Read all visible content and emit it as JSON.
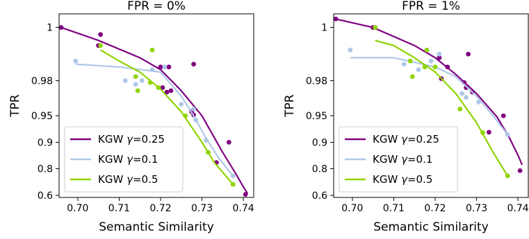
{
  "chart_data": [
    {
      "type": "scatter",
      "title": "FPR = 0%",
      "xlabel": "Semantic Similarity",
      "ylabel": "TPR",
      "xlim": [
        0.6955,
        0.7425
      ],
      "y_scale": "transformed (-log(1 - TPR))",
      "x_ticks": [
        "0.70",
        "0.71",
        "0.72",
        "0.73",
        "0.74"
      ],
      "y_ticks": [
        "0.6",
        "0.8",
        "0.9",
        "0.95",
        "0.98",
        "1"
      ],
      "legend": "lower-left",
      "series": [
        {
          "name": "KGW γ=0.25",
          "color": "#800080",
          "points": [
            [
              0.696,
              0.995
            ],
            [
              0.7055,
              0.994
            ],
            [
              0.705,
              0.992
            ],
            [
              0.72,
              0.986
            ],
            [
              0.722,
              0.986
            ],
            [
              0.7215,
              0.973
            ],
            [
              0.7205,
              0.976
            ],
            [
              0.7225,
              0.974
            ],
            [
              0.728,
              0.987
            ],
            [
              0.7275,
              0.955
            ],
            [
              0.728,
              0.951
            ],
            [
              0.7365,
              0.9
            ],
            [
              0.7335,
              0.83
            ],
            [
              0.7405,
              0.61
            ]
          ],
          "curve": [
            [
              0.696,
              0.995
            ],
            [
              0.705,
              0.993
            ],
            [
              0.715,
              0.989
            ],
            [
              0.72,
              0.985
            ],
            [
              0.725,
              0.974
            ],
            [
              0.73,
              0.95
            ],
            [
              0.735,
              0.87
            ],
            [
              0.738,
              0.78
            ],
            [
              0.74,
              0.68
            ],
            [
              0.741,
              0.62
            ]
          ]
        },
        {
          "name": "KGW γ=0.1",
          "color": "#aec7e8",
          "points": [
            [
              0.6995,
              0.988
            ],
            [
              0.7115,
              0.98
            ],
            [
              0.714,
              0.978
            ],
            [
              0.7155,
              0.98
            ],
            [
              0.718,
              0.985
            ],
            [
              0.721,
              0.986
            ],
            [
              0.725,
              0.963
            ],
            [
              0.728,
              0.958
            ],
            [
              0.7285,
              0.944
            ],
            [
              0.731,
              0.905
            ],
            [
              0.7375,
              0.76
            ]
          ],
          "curve": [
            [
              0.6995,
              0.987
            ],
            [
              0.71,
              0.986
            ],
            [
              0.72,
              0.984
            ],
            [
              0.725,
              0.97
            ],
            [
              0.728,
              0.95
            ],
            [
              0.731,
              0.91
            ],
            [
              0.734,
              0.85
            ],
            [
              0.7375,
              0.76
            ]
          ]
        },
        {
          "name": "KGW γ=0.5",
          "color": "#8fd400",
          "points": [
            [
              0.7055,
              0.992
            ],
            [
              0.714,
              0.982
            ],
            [
              0.718,
              0.991
            ],
            [
              0.7175,
              0.979
            ],
            [
              0.7195,
              0.976
            ],
            [
              0.7145,
              0.974
            ],
            [
              0.726,
              0.95
            ],
            [
              0.7315,
              0.87
            ],
            [
              0.7375,
              0.7
            ]
          ],
          "curve": [
            [
              0.7055,
              0.991
            ],
            [
              0.71,
              0.988
            ],
            [
              0.715,
              0.984
            ],
            [
              0.72,
              0.975
            ],
            [
              0.725,
              0.955
            ],
            [
              0.73,
              0.9
            ],
            [
              0.733,
              0.83
            ],
            [
              0.7375,
              0.7
            ]
          ]
        }
      ]
    },
    {
      "type": "scatter",
      "title": "FPR = 1%",
      "xlabel": "Semantic Similarity",
      "ylabel": "TPR",
      "xlim": [
        0.6955,
        0.7425
      ],
      "y_scale": "transformed (-log(1 - TPR))",
      "x_ticks": [
        "0.70",
        "0.71",
        "0.72",
        "0.73",
        "0.74"
      ],
      "y_ticks": [
        "0.6",
        "0.8",
        "0.9",
        "0.95",
        "0.98",
        "1"
      ],
      "legend": "lower-left",
      "series": [
        {
          "name": "KGW γ=0.25",
          "color": "#800080",
          "points": [
            [
              0.696,
              0.996
            ],
            [
              0.705,
              0.995
            ],
            [
              0.7055,
              0.995
            ],
            [
              0.721,
              0.989
            ],
            [
              0.723,
              0.986
            ],
            [
              0.7215,
              0.981
            ],
            [
              0.727,
              0.979
            ],
            [
              0.7275,
              0.976
            ],
            [
              0.728,
              0.99
            ],
            [
              0.729,
              0.973
            ],
            [
              0.7365,
              0.95
            ],
            [
              0.733,
              0.923
            ],
            [
              0.7405,
              0.79
            ]
          ],
          "curve": [
            [
              0.696,
              0.996
            ],
            [
              0.705,
              0.995
            ],
            [
              0.715,
              0.992
            ],
            [
              0.72,
              0.989
            ],
            [
              0.725,
              0.983
            ],
            [
              0.73,
              0.972
            ],
            [
              0.735,
              0.948
            ],
            [
              0.738,
              0.91
            ],
            [
              0.74,
              0.86
            ],
            [
              0.741,
              0.82
            ]
          ]
        },
        {
          "name": "KGW γ=0.1",
          "color": "#aec7e8",
          "points": [
            [
              0.6995,
              0.991
            ],
            [
              0.7125,
              0.987
            ],
            [
              0.716,
              0.985
            ],
            [
              0.719,
              0.988
            ],
            [
              0.721,
              0.99
            ],
            [
              0.7265,
              0.972
            ],
            [
              0.7275,
              0.969
            ],
            [
              0.7305,
              0.965
            ],
            [
              0.7375,
              0.918
            ]
          ],
          "curve": [
            [
              0.6995,
              0.989
            ],
            [
              0.71,
              0.989
            ],
            [
              0.72,
              0.986
            ],
            [
              0.725,
              0.982
            ],
            [
              0.73,
              0.97
            ],
            [
              0.734,
              0.95
            ],
            [
              0.7375,
              0.918
            ]
          ]
        },
        {
          "name": "KGW γ=0.5",
          "color": "#8fd400",
          "points": [
            [
              0.7055,
              0.995
            ],
            [
              0.714,
              0.988
            ],
            [
              0.718,
              0.991
            ],
            [
              0.7175,
              0.986
            ],
            [
              0.7145,
              0.982
            ],
            [
              0.72,
              0.986
            ],
            [
              0.726,
              0.958
            ],
            [
              0.7315,
              0.922
            ],
            [
              0.7375,
              0.76
            ]
          ],
          "curve": [
            [
              0.7055,
              0.993
            ],
            [
              0.71,
              0.992
            ],
            [
              0.715,
              0.989
            ],
            [
              0.72,
              0.984
            ],
            [
              0.725,
              0.972
            ],
            [
              0.73,
              0.94
            ],
            [
              0.734,
              0.87
            ],
            [
              0.7375,
              0.76
            ]
          ]
        }
      ]
    }
  ]
}
